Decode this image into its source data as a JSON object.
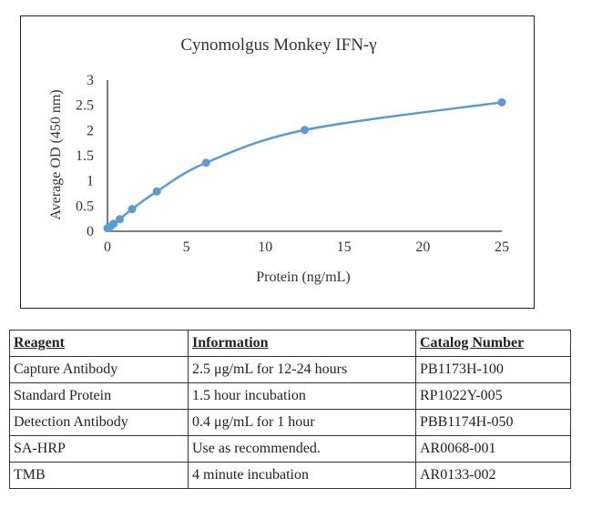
{
  "chart_data": {
    "type": "line",
    "title": "Cynomolgus Monkey IFN-γ",
    "xlabel": "Protein (ng/mL)",
    "ylabel": "Average OD (450 nm)",
    "xlim": [
      0,
      25
    ],
    "ylim": [
      0,
      3
    ],
    "xticks": [
      0,
      5,
      10,
      15,
      20,
      25
    ],
    "yticks": [
      0,
      0.5,
      1,
      1.5,
      2,
      2.5,
      3
    ],
    "grid": false,
    "legend": "none",
    "series": [
      {
        "color": "#5b9bd5",
        "smooth": true,
        "x": [
          0,
          0.2,
          0.39,
          0.78,
          1.56,
          3.13,
          6.25,
          12.5,
          25
        ],
        "y": [
          0.06,
          0.1,
          0.15,
          0.24,
          0.44,
          0.79,
          1.36,
          2.01,
          2.56
        ]
      }
    ]
  },
  "table": {
    "headers": [
      "Reagent",
      "Information",
      "Catalog Number"
    ],
    "rows": [
      [
        "Capture Antibody",
        "2.5 μg/mL for 12-24 hours",
        "PB1173H-100"
      ],
      [
        "Standard Protein",
        "1.5 hour incubation",
        "RP1022Y-005"
      ],
      [
        "Detection Antibody",
        "0.4 μg/mL for 1 hour",
        "PBB1174H-050"
      ],
      [
        "SA-HRP",
        "Use as recommended.",
        "AR0068-001"
      ],
      [
        "TMB",
        "4 minute incubation",
        "AR0133-002"
      ]
    ]
  }
}
